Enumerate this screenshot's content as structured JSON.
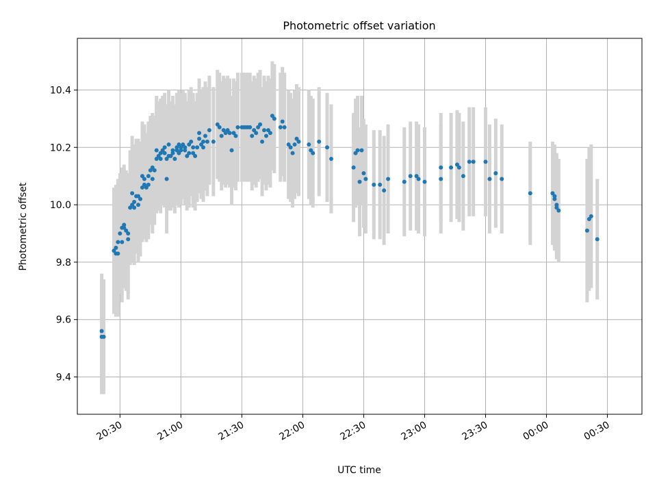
{
  "chart_data": {
    "type": "scatter",
    "title": "Photometric offset variation",
    "xlabel": "UTC time",
    "ylabel": "Photometric offset",
    "x_axis": "time",
    "xlim": [
      "20:09",
      "00:47"
    ],
    "ylim": [
      9.27,
      10.58
    ],
    "x_ticks": [
      "20:30",
      "21:00",
      "21:30",
      "22:00",
      "22:30",
      "23:00",
      "23:30",
      "00:00",
      "00:30"
    ],
    "y_ticks": [
      "9.4",
      "9.6",
      "9.8",
      "10.0",
      "10.2",
      "10.4"
    ],
    "grid": true,
    "marker_color": "#1f77b4",
    "errorbar_color": "#d3d3d3",
    "series": [
      {
        "points": [
          [
            "20:21",
            9.56,
            0.2
          ],
          [
            "20:21",
            9.54,
            0.2
          ],
          [
            "20:22",
            9.54,
            0.2
          ],
          [
            "20:27",
            9.84,
            0.22
          ],
          [
            "20:28",
            9.85,
            0.22
          ],
          [
            "20:28",
            9.83,
            0.22
          ],
          [
            "20:29",
            9.87,
            0.22
          ],
          [
            "20:29",
            9.83,
            0.22
          ],
          [
            "20:30",
            9.9,
            0.21
          ],
          [
            "20:31",
            9.92,
            0.21
          ],
          [
            "20:31",
            9.87,
            0.21
          ],
          [
            "20:32",
            9.93,
            0.21
          ],
          [
            "20:32",
            9.92,
            0.21
          ],
          [
            "20:33",
            9.91,
            0.21
          ],
          [
            "20:34",
            9.9,
            0.21
          ],
          [
            "20:34",
            9.88,
            0.21
          ],
          [
            "20:35",
            9.99,
            0.2
          ],
          [
            "20:36",
            10.0,
            0.2
          ],
          [
            "20:36",
            10.04,
            0.2
          ],
          [
            "20:37",
            9.99,
            0.2
          ],
          [
            "20:37",
            10.01,
            0.2
          ],
          [
            "20:38",
            10.03,
            0.2
          ],
          [
            "20:39",
            10.0,
            0.2
          ],
          [
            "20:39",
            10.03,
            0.2
          ],
          [
            "20:40",
            10.02,
            0.2
          ],
          [
            "20:41",
            10.1,
            0.19
          ],
          [
            "20:41",
            10.06,
            0.19
          ],
          [
            "20:42",
            10.07,
            0.19
          ],
          [
            "20:42",
            10.09,
            0.19
          ],
          [
            "20:43",
            10.06,
            0.19
          ],
          [
            "20:44",
            10.1,
            0.19
          ],
          [
            "20:44",
            10.07,
            0.19
          ],
          [
            "20:45",
            10.12,
            0.19
          ],
          [
            "20:46",
            10.09,
            0.19
          ],
          [
            "20:46",
            10.13,
            0.19
          ],
          [
            "20:47",
            10.12,
            0.19
          ],
          [
            "20:48",
            10.16,
            0.19
          ],
          [
            "20:48",
            10.19,
            0.19
          ],
          [
            "20:49",
            10.17,
            0.19
          ],
          [
            "20:50",
            10.18,
            0.19
          ],
          [
            "20:50",
            10.16,
            0.19
          ],
          [
            "20:51",
            10.19,
            0.19
          ],
          [
            "20:52",
            10.18,
            0.19
          ],
          [
            "20:52",
            10.2,
            0.19
          ],
          [
            "20:53",
            10.16,
            0.19
          ],
          [
            "20:53",
            10.09,
            0.19
          ],
          [
            "20:54",
            10.17,
            0.19
          ],
          [
            "20:54",
            10.21,
            0.19
          ],
          [
            "20:55",
            10.17,
            0.19
          ],
          [
            "20:56",
            10.19,
            0.19
          ],
          [
            "20:56",
            10.18,
            0.19
          ],
          [
            "20:57",
            10.16,
            0.19
          ],
          [
            "20:58",
            10.19,
            0.19
          ],
          [
            "20:58",
            10.2,
            0.19
          ],
          [
            "20:59",
            10.18,
            0.19
          ],
          [
            "20:59",
            10.21,
            0.19
          ],
          [
            "21:00",
            10.19,
            0.19
          ],
          [
            "21:00",
            10.2,
            0.19
          ],
          [
            "21:01",
            10.21,
            0.19
          ],
          [
            "21:02",
            10.19,
            0.19
          ],
          [
            "21:02",
            10.2,
            0.19
          ],
          [
            "21:03",
            10.17,
            0.19
          ],
          [
            "21:04",
            10.21,
            0.19
          ],
          [
            "21:04",
            10.18,
            0.19
          ],
          [
            "21:05",
            10.22,
            0.19
          ],
          [
            "21:06",
            10.2,
            0.19
          ],
          [
            "21:06",
            10.18,
            0.19
          ],
          [
            "21:07",
            10.17,
            0.19
          ],
          [
            "21:08",
            10.2,
            0.19
          ],
          [
            "21:09",
            10.25,
            0.19
          ],
          [
            "21:09",
            10.23,
            0.19
          ],
          [
            "21:10",
            10.21,
            0.19
          ],
          [
            "21:11",
            10.2,
            0.19
          ],
          [
            "21:11",
            10.22,
            0.19
          ],
          [
            "21:12",
            10.24,
            0.19
          ],
          [
            "21:13",
            10.22,
            0.19
          ],
          [
            "21:14",
            10.26,
            0.19
          ],
          [
            "21:16",
            10.22,
            0.19
          ],
          [
            "21:18",
            10.28,
            0.19
          ],
          [
            "21:19",
            10.27,
            0.19
          ],
          [
            "21:20",
            10.24,
            0.19
          ],
          [
            "21:21",
            10.26,
            0.19
          ],
          [
            "21:22",
            10.25,
            0.19
          ],
          [
            "21:23",
            10.26,
            0.19
          ],
          [
            "21:24",
            10.25,
            0.19
          ],
          [
            "21:25",
            10.19,
            0.19
          ],
          [
            "21:26",
            10.25,
            0.19
          ],
          [
            "21:27",
            10.24,
            0.19
          ],
          [
            "21:28",
            10.27,
            0.19
          ],
          [
            "21:30",
            10.27,
            0.19
          ],
          [
            "21:31",
            10.27,
            0.19
          ],
          [
            "21:32",
            10.27,
            0.19
          ],
          [
            "21:33",
            10.27,
            0.19
          ],
          [
            "21:34",
            10.27,
            0.19
          ],
          [
            "21:35",
            10.24,
            0.19
          ],
          [
            "21:36",
            10.26,
            0.19
          ],
          [
            "21:37",
            10.25,
            0.19
          ],
          [
            "21:38",
            10.27,
            0.19
          ],
          [
            "21:39",
            10.28,
            0.19
          ],
          [
            "21:40",
            10.22,
            0.19
          ],
          [
            "21:41",
            10.26,
            0.19
          ],
          [
            "21:42",
            10.24,
            0.19
          ],
          [
            "21:43",
            10.26,
            0.19
          ],
          [
            "21:44",
            10.25,
            0.19
          ],
          [
            "21:45",
            10.31,
            0.19
          ],
          [
            "21:46",
            10.3,
            0.19
          ],
          [
            "21:49",
            10.27,
            0.19
          ],
          [
            "21:50",
            10.29,
            0.19
          ],
          [
            "21:51",
            10.27,
            0.19
          ],
          [
            "21:53",
            10.21,
            0.19
          ],
          [
            "21:54",
            10.2,
            0.19
          ],
          [
            "21:55",
            10.18,
            0.19
          ],
          [
            "21:56",
            10.21,
            0.19
          ],
          [
            "21:57",
            10.23,
            0.19
          ],
          [
            "21:58",
            10.22,
            0.19
          ],
          [
            "22:03",
            10.21,
            0.19
          ],
          [
            "22:04",
            10.19,
            0.19
          ],
          [
            "22:05",
            10.18,
            0.19
          ],
          [
            "22:08",
            10.22,
            0.19
          ],
          [
            "22:12",
            10.2,
            0.19
          ],
          [
            "22:14",
            10.16,
            0.19
          ],
          [
            "22:25",
            10.13,
            0.19
          ],
          [
            "22:26",
            10.18,
            0.19
          ],
          [
            "22:27",
            10.19,
            0.19
          ],
          [
            "22:28",
            10.08,
            0.19
          ],
          [
            "22:29",
            10.19,
            0.19
          ],
          [
            "22:30",
            10.11,
            0.19
          ],
          [
            "22:31",
            10.09,
            0.19
          ],
          [
            "22:35",
            10.07,
            0.19
          ],
          [
            "22:38",
            10.07,
            0.19
          ],
          [
            "22:40",
            10.05,
            0.19
          ],
          [
            "22:42",
            10.09,
            0.19
          ],
          [
            "22:50",
            10.08,
            0.19
          ],
          [
            "22:53",
            10.1,
            0.19
          ],
          [
            "22:56",
            10.1,
            0.19
          ],
          [
            "22:57",
            10.09,
            0.19
          ],
          [
            "23:00",
            10.08,
            0.19
          ],
          [
            "23:08",
            10.09,
            0.19
          ],
          [
            "23:08",
            10.13,
            0.19
          ],
          [
            "23:13",
            10.13,
            0.19
          ],
          [
            "23:16",
            10.14,
            0.19
          ],
          [
            "23:17",
            10.13,
            0.19
          ],
          [
            "23:19",
            10.1,
            0.19
          ],
          [
            "23:22",
            10.15,
            0.19
          ],
          [
            "23:24",
            10.15,
            0.19
          ],
          [
            "23:30",
            10.15,
            0.19
          ],
          [
            "23:32",
            10.09,
            0.19
          ],
          [
            "23:35",
            10.11,
            0.19
          ],
          [
            "23:38",
            10.09,
            0.19
          ],
          [
            "23:52",
            10.04,
            0.18
          ],
          [
            "00:03",
            10.04,
            0.18
          ],
          [
            "00:04",
            10.03,
            0.18
          ],
          [
            "00:04",
            10.02,
            0.18
          ],
          [
            "00:05",
            10.0,
            0.18
          ],
          [
            "00:05",
            9.99,
            0.18
          ],
          [
            "00:06",
            9.98,
            0.18
          ],
          [
            "00:20",
            9.91,
            0.25
          ],
          [
            "00:21",
            9.95,
            0.25
          ],
          [
            "00:22",
            9.96,
            0.25
          ],
          [
            "00:25",
            9.88,
            0.21
          ]
        ]
      }
    ]
  }
}
